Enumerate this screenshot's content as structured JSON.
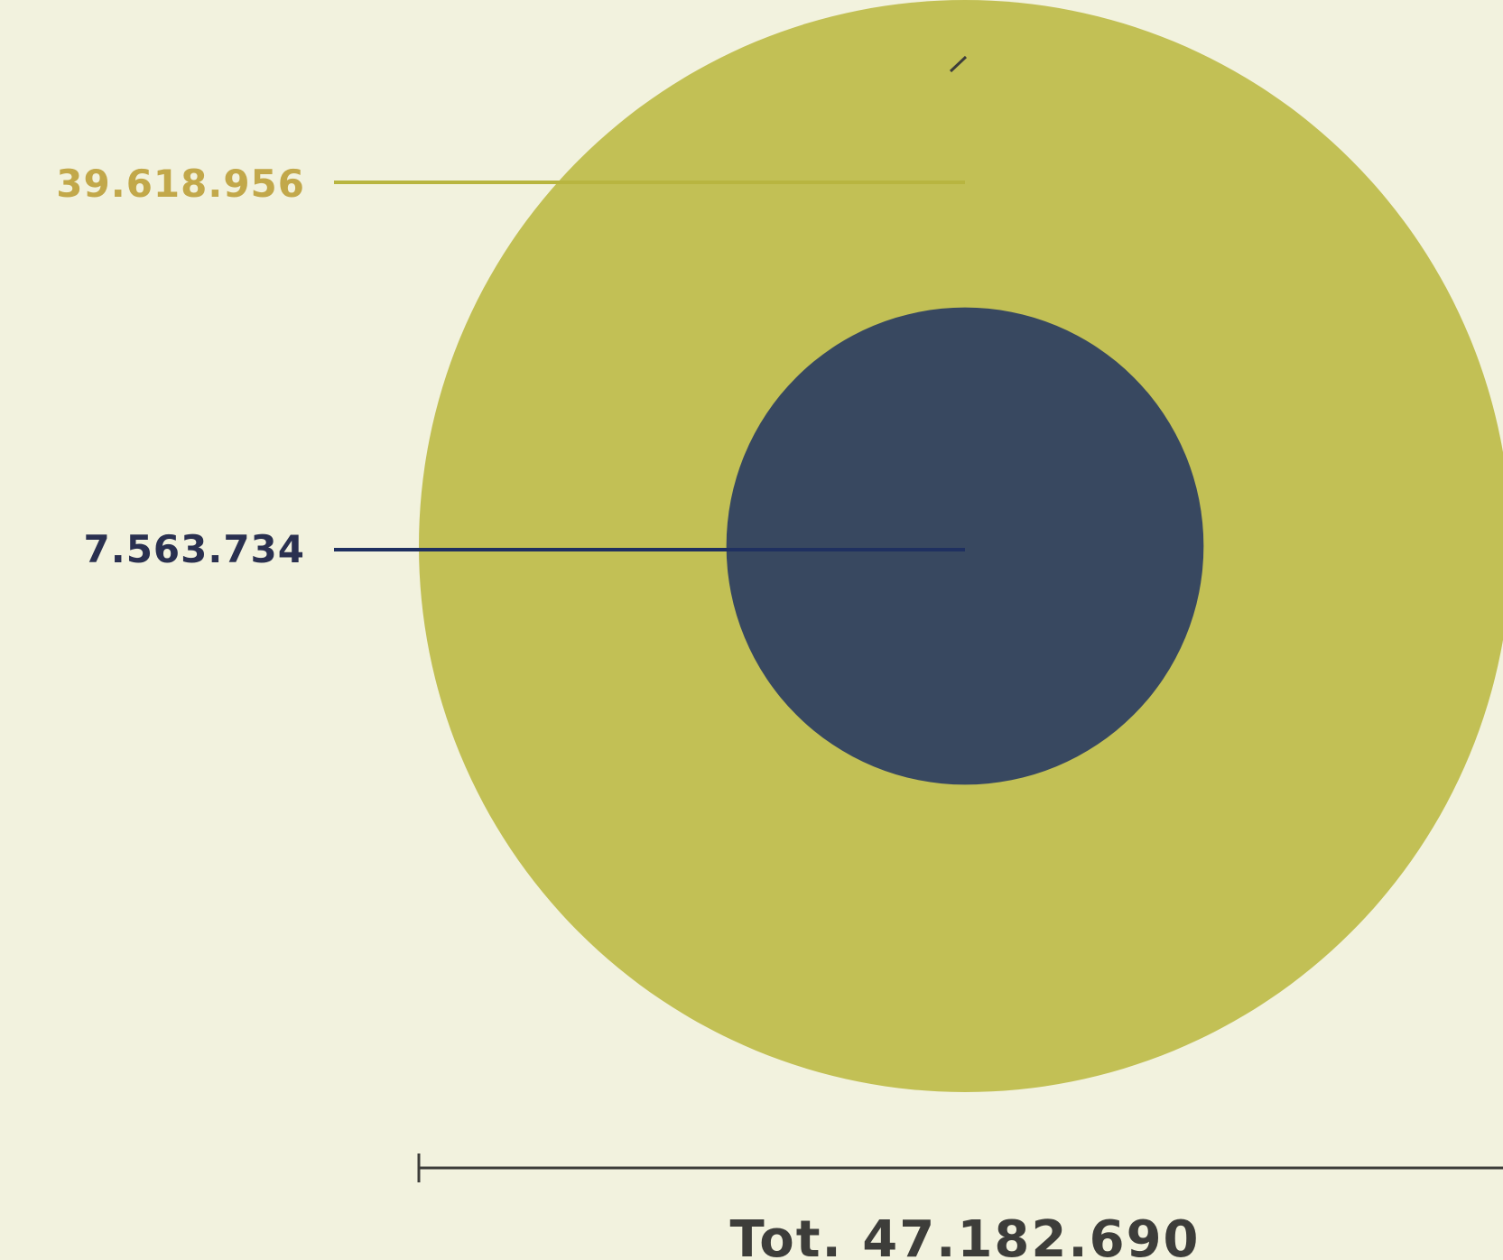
{
  "chart_data": {
    "type": "nested-bubble",
    "series": [
      {
        "label": "39.618.956",
        "value": 39618956,
        "color": "#c2c055",
        "label_color": "#c2a84a",
        "leader_color": "#b8b540"
      },
      {
        "label": "7.563.734",
        "value": 7563734,
        "color": "#384860",
        "label_color": "#2a3050",
        "leader_color": "#1f3060"
      }
    ],
    "total": {
      "label": "Tot. 47.182.690",
      "value": 47182690
    },
    "background_color": "#f2f2de",
    "axis_color": "#3d3d3a",
    "text_color": "#3d3d3a"
  }
}
